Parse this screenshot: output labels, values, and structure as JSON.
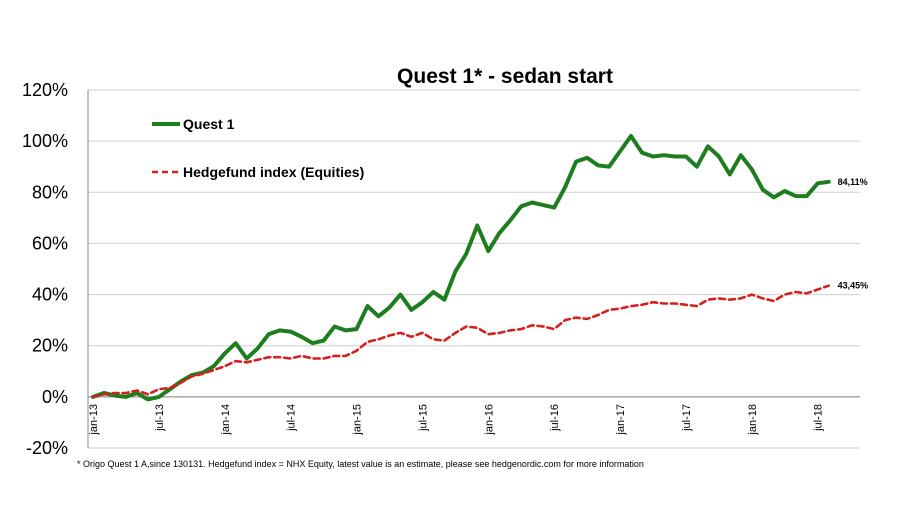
{
  "chart_data": {
    "type": "line",
    "title": "Quest 1* - sedan start",
    "footnote": "* Origo Quest 1 A,since 130131. Hedgefund index = NHX Equity, latest value is an estimate, please see hedgenordic.com for more information",
    "ylim": [
      -20,
      120
    ],
    "y_ticks": [
      "-20%",
      "0%",
      "20%",
      "40%",
      "60%",
      "80%",
      "100%",
      "120%"
    ],
    "x_ticks": [
      {
        "label": "jan-13",
        "index": 0
      },
      {
        "label": "jul-13",
        "index": 6
      },
      {
        "label": "jan-14",
        "index": 12
      },
      {
        "label": "jul-14",
        "index": 18
      },
      {
        "label": "jan-15",
        "index": 24
      },
      {
        "label": "jul-15",
        "index": 30
      },
      {
        "label": "jan-16",
        "index": 36
      },
      {
        "label": "jul-16",
        "index": 42
      },
      {
        "label": "jan-17",
        "index": 48
      },
      {
        "label": "jul-17",
        "index": 54
      },
      {
        "label": "jan-18",
        "index": 60
      },
      {
        "label": "jul-18",
        "index": 66
      }
    ],
    "grid": "horizontal",
    "legend_position": "top-left",
    "series": [
      {
        "name": "Quest 1",
        "color": "#1e7d1e",
        "style": "solid",
        "end_label": "84,11%",
        "values": [
          0,
          1.5,
          0.5,
          0,
          1.5,
          -1,
          0,
          3,
          6,
          8.5,
          9.5,
          12,
          17,
          21,
          15,
          19,
          24.5,
          26,
          25.5,
          23.5,
          21,
          22,
          27.5,
          26,
          26.5,
          35.5,
          31.5,
          35,
          40,
          34,
          37,
          41,
          38,
          49,
          56,
          67,
          57,
          64,
          69,
          74.5,
          76,
          75,
          74,
          82,
          92,
          93.5,
          90.5,
          90,
          96,
          102,
          95.5,
          94,
          94.5,
          94,
          94,
          90,
          98,
          94,
          87,
          94.5,
          89,
          81,
          78,
          80.5,
          78.5,
          78.5,
          83.5,
          84.11
        ]
      },
      {
        "name": "Hedgefund index (Equities)",
        "color": "#d62020",
        "style": "dashed",
        "end_label": "43,45%",
        "values": [
          0,
          1,
          1.5,
          1.5,
          2.5,
          1,
          3,
          3.5,
          5.5,
          8,
          9,
          10.5,
          12,
          14,
          13.5,
          14.5,
          15.5,
          15.5,
          15,
          16,
          15,
          15,
          16,
          16,
          18,
          21.5,
          22.5,
          24,
          25,
          23.5,
          25,
          22.5,
          22,
          25,
          27.5,
          27,
          24.5,
          25,
          26,
          26.5,
          28,
          27.5,
          26.5,
          30,
          31,
          30.5,
          32,
          34,
          34.5,
          35.5,
          36,
          37,
          36.5,
          36.5,
          36,
          35.5,
          38,
          38.5,
          38,
          38.5,
          40,
          38.5,
          37.5,
          40,
          41,
          40.5,
          42,
          43.45
        ]
      }
    ]
  }
}
